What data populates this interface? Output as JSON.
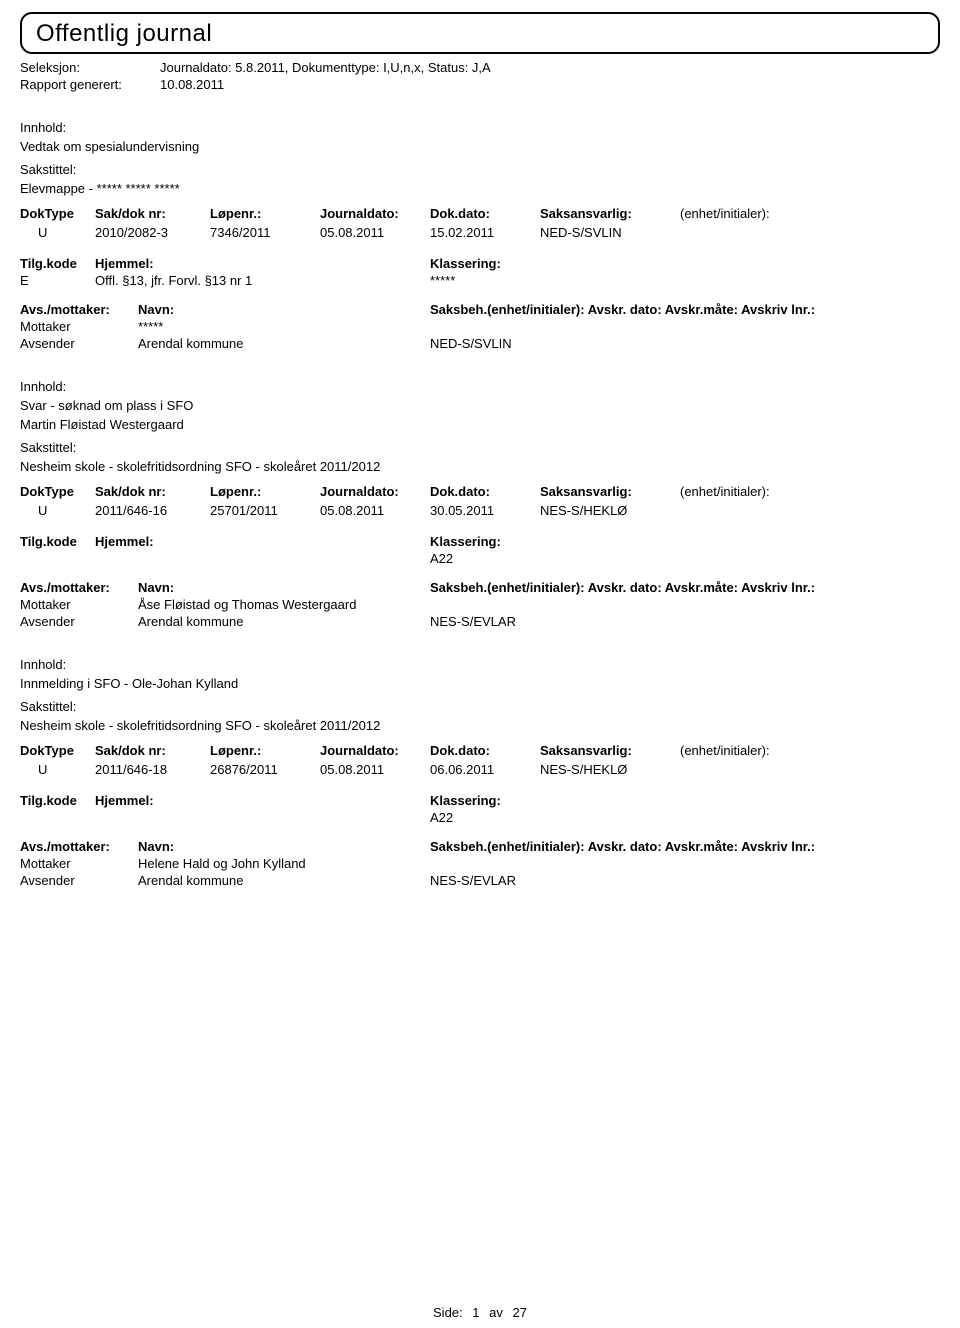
{
  "header": {
    "title": "Offentlig journal",
    "seleksjon_label": "Seleksjon:",
    "seleksjon_value": "Journaldato: 5.8.2011, Dokumenttype: I,U,n,x, Status: J,A",
    "rapport_label": "Rapport generert:",
    "rapport_value": "10.08.2011"
  },
  "labels": {
    "innhold": "Innhold:",
    "sakstittel": "Sakstittel:",
    "doktype": "DokType",
    "saknr": "Sak/dok nr:",
    "lopenr": "Løpenr.:",
    "journaldato": "Journaldato:",
    "dokdato": "Dok.dato:",
    "saksansvarlig": "Saksansvarlig:",
    "enhet": "(enhet/initialer):",
    "tilgkode": "Tilg.kode",
    "hjemmel": "Hjemmel:",
    "klassering": "Klassering:",
    "avsmottaker": "Avs./mottaker:",
    "navn": "Navn:",
    "saksbeh": "Saksbeh.(enhet/initialer): Avskr. dato: Avskr.måte: Avskriv lnr.:",
    "mottaker": "Mottaker",
    "avsender": "Avsender"
  },
  "entries": [
    {
      "innhold": "Vedtak om spesialundervisning",
      "innhold2": "",
      "sakstittel": "Elevmappe - ***** ***** *****",
      "doktype": "U",
      "saknr": "2010/2082-3",
      "lopenr": "7346/2011",
      "journaldato": "05.08.2011",
      "dokdato": "15.02.2011",
      "saksansvarlig": "NED-S/SVLIN",
      "tilgkode": "E",
      "hjemmel": "Offl. §13, jfr. Forvl. §13 nr 1",
      "klassering": "*****",
      "mottaker_navn": "*****",
      "avsender_navn": "Arendal kommune",
      "saksbeh_unit": "NED-S/SVLIN"
    },
    {
      "innhold": "Svar - søknad om plass i SFO",
      "innhold2": "Martin Fløistad Westergaard",
      "sakstittel": "Nesheim skole - skolefritidsordning SFO - skoleåret 2011/2012",
      "doktype": "U",
      "saknr": "2011/646-16",
      "lopenr": "25701/2011",
      "journaldato": "05.08.2011",
      "dokdato": "30.05.2011",
      "saksansvarlig": "NES-S/HEKLØ",
      "tilgkode": "",
      "hjemmel": "",
      "klassering": "A22",
      "mottaker_navn": "Åse Fløistad og Thomas Westergaard",
      "avsender_navn": "Arendal kommune",
      "saksbeh_unit": "NES-S/EVLAR"
    },
    {
      "innhold": "Innmelding i SFO - Ole-Johan Kylland",
      "innhold2": "",
      "sakstittel": "Nesheim skole - skolefritidsordning SFO - skoleåret 2011/2012",
      "doktype": "U",
      "saknr": "2011/646-18",
      "lopenr": "26876/2011",
      "journaldato": "05.08.2011",
      "dokdato": "06.06.2011",
      "saksansvarlig": "NES-S/HEKLØ",
      "tilgkode": "",
      "hjemmel": "",
      "klassering": "A22",
      "mottaker_navn": "Helene Hald og John Kylland",
      "avsender_navn": "Arendal kommune",
      "saksbeh_unit": "NES-S/EVLAR"
    }
  ],
  "footer": {
    "side_label": "Side:",
    "page": "1",
    "av": "av",
    "total": "27"
  }
}
